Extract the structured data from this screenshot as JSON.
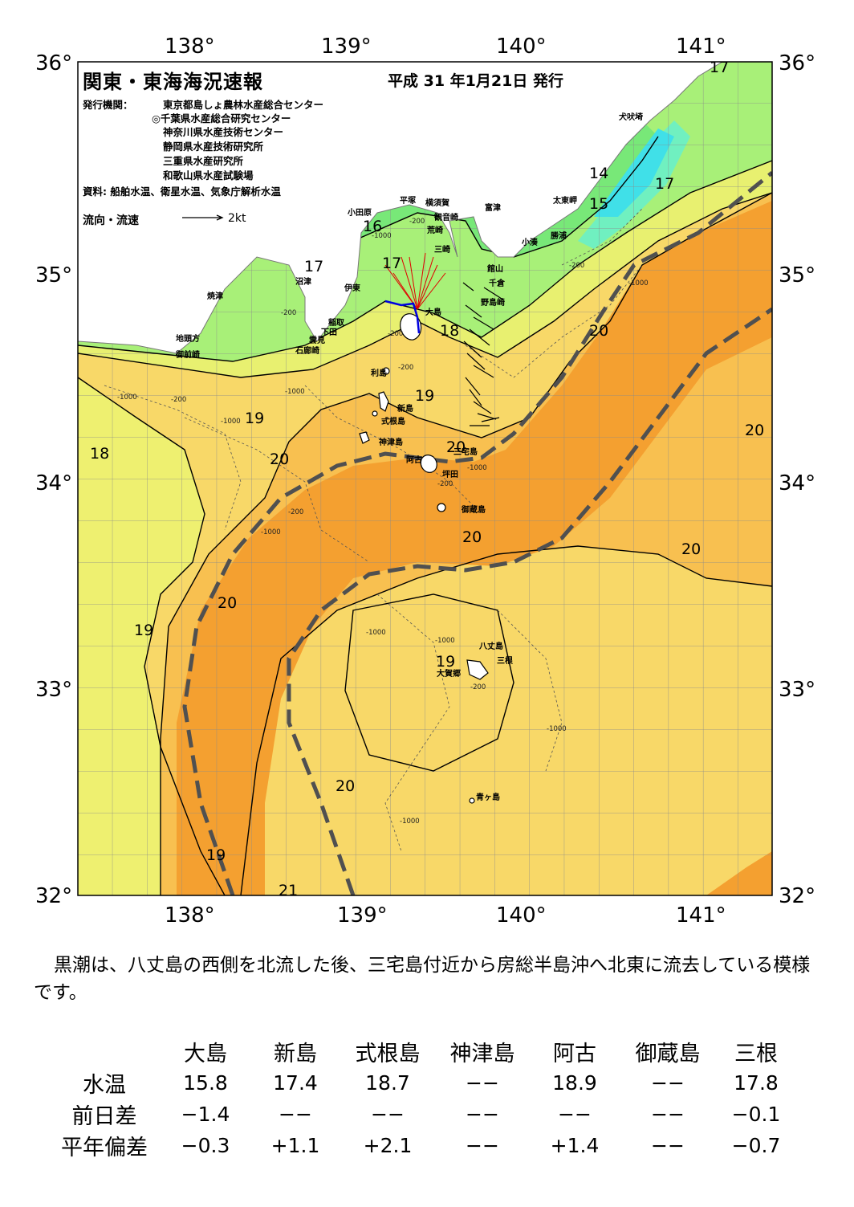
{
  "header": {
    "title": "関東・東海海況速報",
    "issue_date": "平成 31 年1月21日 発行",
    "publishers_label": "発行機関：",
    "publishers": [
      "東京都島しょ農林水産総合センター",
      "◎千葉県水産総合研究センター",
      "神奈川県水産技術センター",
      "静岡県水産技術研究所",
      "三重県水産研究所",
      "和歌山県水産試験場"
    ],
    "sources": "資料: 船舶水温、衛星水温、気象庁解析水温",
    "legend": {
      "label": "流向・流速",
      "scale": "2kt"
    }
  },
  "axes": {
    "lon_labels": [
      "138°",
      "139°",
      "140°",
      "141°"
    ],
    "lat_labels": [
      "36°",
      "35°",
      "34°",
      "33°",
      "32°"
    ]
  },
  "place_names": [
    {
      "id": "inubozaki",
      "text": "犬吠埼"
    },
    {
      "id": "taitomisaki",
      "text": "太東岬"
    },
    {
      "id": "katsuura",
      "text": "勝浦"
    },
    {
      "id": "kominato",
      "text": "小湊"
    },
    {
      "id": "futtsu",
      "text": "富津"
    },
    {
      "id": "kannonzaki",
      "text": "観音崎"
    },
    {
      "id": "yokosuka",
      "text": "横須賀"
    },
    {
      "id": "hiratsuka",
      "text": "平塚"
    },
    {
      "id": "odawara",
      "text": "小田原"
    },
    {
      "id": "arasaki",
      "text": "荒崎"
    },
    {
      "id": "misaki",
      "text": "三崎"
    },
    {
      "id": "tateyama",
      "text": "館山"
    },
    {
      "id": "chikura",
      "text": "千倉"
    },
    {
      "id": "nojimazaki",
      "text": "野島崎"
    },
    {
      "id": "numazu",
      "text": "沼津"
    },
    {
      "id": "ito",
      "text": "伊東"
    },
    {
      "id": "yaizu",
      "text": "焼津"
    },
    {
      "id": "inatori",
      "text": "稲取"
    },
    {
      "id": "shimoda",
      "text": "下田"
    },
    {
      "id": "kumomi",
      "text": "雲見"
    },
    {
      "id": "irozaki",
      "text": "石廊崎"
    },
    {
      "id": "jitogata",
      "text": "地頭方"
    },
    {
      "id": "omaezaki",
      "text": "御前崎"
    },
    {
      "id": "oshima",
      "text": "大島"
    },
    {
      "id": "toshima",
      "text": "利島"
    },
    {
      "id": "niijima",
      "text": "新島"
    },
    {
      "id": "shikinejima",
      "text": "式根島"
    },
    {
      "id": "kozushima",
      "text": "神津島"
    },
    {
      "id": "ako",
      "text": "阿古"
    },
    {
      "id": "miyakejima",
      "text": "三宅島"
    },
    {
      "id": "tsubota",
      "text": "坪田"
    },
    {
      "id": "mikurajima",
      "text": "御蔵島"
    },
    {
      "id": "hachijojima",
      "text": "八丈島"
    },
    {
      "id": "mitsune",
      "text": "三根"
    },
    {
      "id": "okago",
      "text": "大賀郷"
    },
    {
      "id": "aogashima",
      "text": "青ヶ島"
    }
  ],
  "isotherm_labels": [
    {
      "id": "t17a",
      "text": "17"
    },
    {
      "id": "t14",
      "text": "14"
    },
    {
      "id": "t15",
      "text": "15"
    },
    {
      "id": "t17b",
      "text": "17"
    },
    {
      "id": "t16",
      "text": "16"
    },
    {
      "id": "t17c",
      "text": "17"
    },
    {
      "id": "t17d",
      "text": "17"
    },
    {
      "id": "t18a",
      "text": "18"
    },
    {
      "id": "t20a",
      "text": "20"
    },
    {
      "id": "t19a",
      "text": "19"
    },
    {
      "id": "t19b",
      "text": "19"
    },
    {
      "id": "t18b",
      "text": "18"
    },
    {
      "id": "t20b",
      "text": "20"
    },
    {
      "id": "t20c",
      "text": "20"
    },
    {
      "id": "t20d",
      "text": "20"
    },
    {
      "id": "t20e",
      "text": "20"
    },
    {
      "id": "t20f",
      "text": "20"
    },
    {
      "id": "t20g",
      "text": "20"
    },
    {
      "id": "t19c",
      "text": "19"
    },
    {
      "id": "t19d",
      "text": "19"
    },
    {
      "id": "t20h",
      "text": "20"
    },
    {
      "id": "t19e",
      "text": "19"
    },
    {
      "id": "t21",
      "text": "21"
    }
  ],
  "depth_labels": [
    {
      "id": "d1",
      "text": "-200"
    },
    {
      "id": "d2",
      "text": "-1000"
    },
    {
      "id": "d3",
      "text": "-200"
    },
    {
      "id": "d4",
      "text": "-1000"
    },
    {
      "id": "d5",
      "text": "-200"
    },
    {
      "id": "d6",
      "text": "-1000"
    },
    {
      "id": "d7",
      "text": "-200"
    },
    {
      "id": "d8",
      "text": "-1000"
    },
    {
      "id": "d9",
      "text": "-200"
    },
    {
      "id": "d10",
      "text": "-1000"
    },
    {
      "id": "d11",
      "text": "-200"
    },
    {
      "id": "d12",
      "text": "-1000"
    },
    {
      "id": "d13",
      "text": "-200"
    },
    {
      "id": "d14",
      "text": "-1000"
    },
    {
      "id": "d15",
      "text": "-1000"
    },
    {
      "id": "d16",
      "text": "-1000"
    },
    {
      "id": "d17",
      "text": "-200"
    },
    {
      "id": "d18",
      "text": "-1000"
    },
    {
      "id": "d19",
      "text": "-1000"
    },
    {
      "id": "d20",
      "text": "-200"
    }
  ],
  "colors": {
    "sst_14": "#40e0e8",
    "sst_15": "#70f0c0",
    "sst_16": "#78e878",
    "sst_17": "#a8f078",
    "sst_18": "#e8f070",
    "sst_19": "#f8d868",
    "sst_20": "#f8c050",
    "sst_21": "#f4a030",
    "kuroshio_axis": "#505050",
    "land": "#ffffff",
    "current_arrow": "#000000",
    "vector_red": "#e00000",
    "vector_blue": "#0000e0"
  },
  "caption": "黒潮は、八丈島の西側を北流した後、三宅島付近から房総半島沖へ北東に流去している模様です。",
  "table": {
    "stations": [
      "大島",
      "新島",
      "式根島",
      "神津島",
      "阿古",
      "御蔵島",
      "三根"
    ],
    "rows": [
      {
        "label": "水温",
        "values": [
          "15.8",
          "17.4",
          "18.7",
          "−−",
          "18.9",
          "−−",
          "17.8"
        ]
      },
      {
        "label": "前日差",
        "values": [
          "−1.4",
          "−−",
          "−−",
          "−−",
          "−−",
          "−−",
          "−0.1"
        ]
      },
      {
        "label": "平年偏差",
        "values": [
          "−0.3",
          "+1.1",
          "+2.1",
          "−−",
          "+1.4",
          "−−",
          "−0.7"
        ]
      }
    ]
  }
}
